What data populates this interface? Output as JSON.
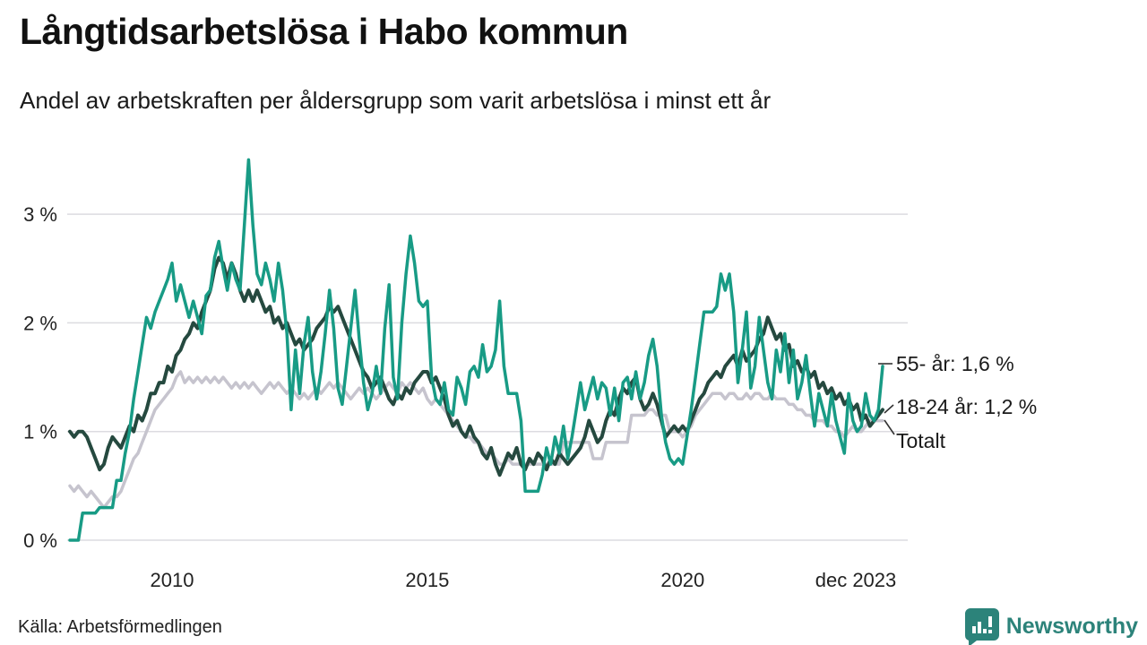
{
  "header": {
    "title": "Långtidsarbetslösa i Habo kommun",
    "subtitle": "Andel av arbetskraften per åldersgrupp som varit arbetslösa i minst ett år"
  },
  "chart_data": {
    "type": "line",
    "unit": "%",
    "frequency": "monthly",
    "start": "jan 2008",
    "end": "dec 2023",
    "ylim": [
      0,
      3.6
    ],
    "grid": "horizontal",
    "y_ticks": [
      "0 %",
      "1 %",
      "2 %",
      "3 %"
    ],
    "x_ticks": [
      "2010",
      "2015",
      "2020",
      "dec 2023"
    ],
    "end_labels": [
      "55- år: 1,6 %",
      "18-24 år: 1,2 %",
      "Totalt"
    ],
    "colors": {
      "55_ar": "#189b85",
      "18_24_ar": "#25493f",
      "totalt": "#c6c4ce",
      "gridline": "#dcdbe0",
      "leader": "#333333"
    },
    "series": [
      {
        "name": "Totalt",
        "color": "#c6c4ce",
        "final_value": 1.1,
        "values": [
          0.5,
          0.45,
          0.5,
          0.45,
          0.4,
          0.45,
          0.4,
          0.35,
          0.3,
          0.35,
          0.4,
          0.4,
          0.45,
          0.55,
          0.65,
          0.75,
          0.8,
          0.9,
          1.0,
          1.1,
          1.2,
          1.25,
          1.3,
          1.35,
          1.4,
          1.5,
          1.55,
          1.45,
          1.5,
          1.45,
          1.5,
          1.45,
          1.5,
          1.45,
          1.5,
          1.45,
          1.5,
          1.45,
          1.4,
          1.45,
          1.4,
          1.45,
          1.4,
          1.45,
          1.4,
          1.35,
          1.4,
          1.45,
          1.4,
          1.45,
          1.4,
          1.35,
          1.4,
          1.35,
          1.3,
          1.35,
          1.3,
          1.35,
          1.4,
          1.35,
          1.4,
          1.45,
          1.4,
          1.45,
          1.4,
          1.35,
          1.3,
          1.35,
          1.4,
          1.35,
          1.4,
          1.35,
          1.3,
          1.35,
          1.4,
          1.45,
          1.4,
          1.35,
          1.45,
          1.4,
          1.45,
          1.4,
          1.35,
          1.4,
          1.3,
          1.25,
          1.3,
          1.25,
          1.2,
          1.15,
          1.1,
          1.05,
          1.0,
          0.95,
          0.95,
          0.9,
          0.9,
          0.85,
          0.8,
          0.8,
          0.75,
          0.7,
          0.7,
          0.75,
          0.7,
          0.7,
          0.7,
          0.7,
          0.7,
          0.7,
          0.7,
          0.7,
          0.7,
          0.7,
          0.7,
          0.7,
          0.9,
          0.9,
          0.9,
          0.9,
          0.9,
          0.9,
          0.9,
          0.75,
          0.75,
          0.75,
          0.9,
          0.9,
          0.9,
          0.9,
          0.9,
          0.9,
          1.15,
          1.15,
          1.15,
          1.15,
          1.2,
          1.2,
          1.15,
          1.15,
          1.15,
          1.0,
          1.0,
          1.0,
          0.95,
          1.0,
          1.05,
          1.15,
          1.2,
          1.25,
          1.3,
          1.35,
          1.35,
          1.35,
          1.3,
          1.35,
          1.35,
          1.3,
          1.3,
          1.35,
          1.3,
          1.35,
          1.35,
          1.3,
          1.3,
          1.35,
          1.3,
          1.3,
          1.3,
          1.25,
          1.25,
          1.2,
          1.2,
          1.15,
          1.15,
          1.1,
          1.1,
          1.1,
          1.05,
          1.05,
          1.0,
          1.0,
          0.95,
          1.0,
          1.05,
          1.0,
          1.0,
          1.05,
          1.1,
          1.1,
          1.1,
          1.1
        ]
      },
      {
        "name": "18-24 år",
        "color": "#25493f",
        "final_value": 1.2,
        "values": [
          1.0,
          0.95,
          1.0,
          1.0,
          0.95,
          0.85,
          0.75,
          0.65,
          0.7,
          0.85,
          0.95,
          0.9,
          0.85,
          0.95,
          1.05,
          1.0,
          1.15,
          1.1,
          1.2,
          1.35,
          1.35,
          1.45,
          1.45,
          1.6,
          1.55,
          1.7,
          1.75,
          1.85,
          1.9,
          2.0,
          1.95,
          2.1,
          2.2,
          2.3,
          2.5,
          2.6,
          2.55,
          2.4,
          2.55,
          2.45,
          2.3,
          2.2,
          2.3,
          2.2,
          2.3,
          2.2,
          2.1,
          2.15,
          2.0,
          2.05,
          1.95,
          2.0,
          1.9,
          1.8,
          1.85,
          1.75,
          1.8,
          1.85,
          1.95,
          2.0,
          2.05,
          2.15,
          2.1,
          2.15,
          2.05,
          1.95,
          1.85,
          1.75,
          1.65,
          1.55,
          1.5,
          1.4,
          1.45,
          1.5,
          1.4,
          1.3,
          1.25,
          1.35,
          1.3,
          1.4,
          1.35,
          1.45,
          1.5,
          1.55,
          1.55,
          1.45,
          1.5,
          1.4,
          1.3,
          1.15,
          1.05,
          1.1,
          1.0,
          0.95,
          1.05,
          0.95,
          0.9,
          0.8,
          0.75,
          0.85,
          0.7,
          0.6,
          0.7,
          0.8,
          0.75,
          0.85,
          0.7,
          0.65,
          0.75,
          0.7,
          0.8,
          0.75,
          0.65,
          0.75,
          0.7,
          0.8,
          0.75,
          0.7,
          0.75,
          0.8,
          0.85,
          0.95,
          1.1,
          1.0,
          0.9,
          0.95,
          1.1,
          1.2,
          1.15,
          1.3,
          1.4,
          1.35,
          1.45,
          1.5,
          1.3,
          1.2,
          1.25,
          1.35,
          1.25,
          1.1,
          0.95,
          1.0,
          1.05,
          1.0,
          1.05,
          1.0,
          1.1,
          1.2,
          1.3,
          1.35,
          1.45,
          1.5,
          1.55,
          1.5,
          1.6,
          1.65,
          1.7,
          1.6,
          1.75,
          1.65,
          1.7,
          1.75,
          1.85,
          1.9,
          2.05,
          1.95,
          1.85,
          1.9,
          1.75,
          1.8,
          1.6,
          1.65,
          1.55,
          1.6,
          1.5,
          1.55,
          1.4,
          1.45,
          1.35,
          1.4,
          1.3,
          1.35,
          1.25,
          1.3,
          1.2,
          1.25,
          1.1,
          1.15,
          1.05,
          1.1,
          1.15,
          1.2
        ]
      },
      {
        "name": "55- år",
        "color": "#189b85",
        "final_value": 1.6,
        "values": [
          0.0,
          0.0,
          0.0,
          0.25,
          0.25,
          0.25,
          0.25,
          0.3,
          0.3,
          0.3,
          0.3,
          0.55,
          0.55,
          0.8,
          1.0,
          1.3,
          1.55,
          1.8,
          2.05,
          1.95,
          2.1,
          2.2,
          2.3,
          2.4,
          2.55,
          2.2,
          2.35,
          2.2,
          2.05,
          2.2,
          2.05,
          1.9,
          2.25,
          2.3,
          2.6,
          2.75,
          2.5,
          2.3,
          2.55,
          2.4,
          2.3,
          2.9,
          3.5,
          2.9,
          2.45,
          2.35,
          2.55,
          2.4,
          2.2,
          2.55,
          2.3,
          1.9,
          1.2,
          1.75,
          1.35,
          1.8,
          2.05,
          1.55,
          1.3,
          1.55,
          1.9,
          2.3,
          1.95,
          1.4,
          1.25,
          1.6,
          1.95,
          2.3,
          1.85,
          1.45,
          1.2,
          1.35,
          1.6,
          1.35,
          1.95,
          2.35,
          1.5,
          1.3,
          2.0,
          2.45,
          2.8,
          2.55,
          2.2,
          2.15,
          2.2,
          1.5,
          1.3,
          1.25,
          1.45,
          1.2,
          1.15,
          1.5,
          1.4,
          1.25,
          1.55,
          1.6,
          1.5,
          1.8,
          1.55,
          1.6,
          1.75,
          2.2,
          1.6,
          1.35,
          1.35,
          1.35,
          1.1,
          0.45,
          0.45,
          0.45,
          0.45,
          0.6,
          0.85,
          0.7,
          0.95,
          0.8,
          1.05,
          0.75,
          0.95,
          1.2,
          1.45,
          1.2,
          1.35,
          1.5,
          1.3,
          1.45,
          1.4,
          1.15,
          1.4,
          1.1,
          1.45,
          1.5,
          1.3,
          1.55,
          1.3,
          1.45,
          1.7,
          1.85,
          1.6,
          1.15,
          0.9,
          0.75,
          0.7,
          0.75,
          0.7,
          0.95,
          1.2,
          1.5,
          1.8,
          2.1,
          2.1,
          2.1,
          2.15,
          2.45,
          2.3,
          2.45,
          2.1,
          1.45,
          1.75,
          2.1,
          1.4,
          1.6,
          2.05,
          1.75,
          1.45,
          1.3,
          1.75,
          1.55,
          1.9,
          1.45,
          1.75,
          1.3,
          1.45,
          1.7,
          1.35,
          1.05,
          1.35,
          1.2,
          1.05,
          1.35,
          1.1,
          0.95,
          0.8,
          1.35,
          1.1,
          1.0,
          1.05,
          1.35,
          1.15,
          1.1,
          1.2,
          1.6
        ]
      }
    ]
  },
  "footer": {
    "source": "Källa: Arbetsförmedlingen",
    "logo_text": "Newsworthy",
    "logo_color": "#2c837a"
  }
}
